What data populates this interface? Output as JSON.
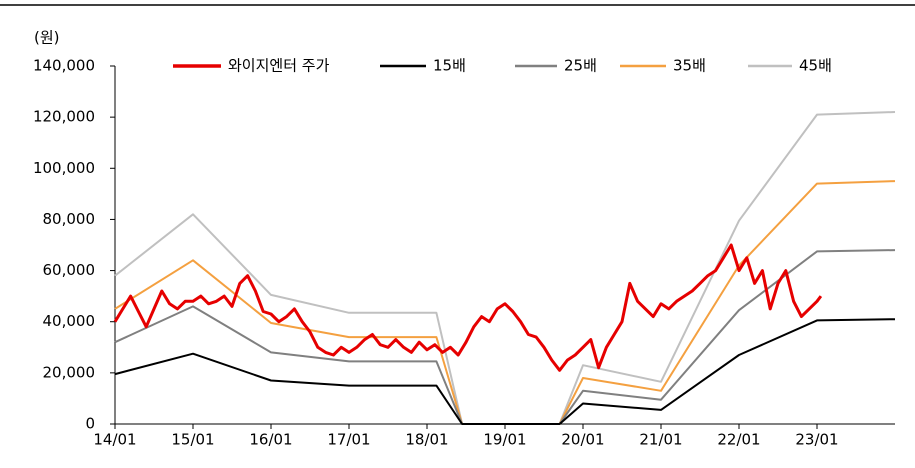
{
  "chart_data": {
    "type": "line",
    "y_axis_unit": "(원)",
    "xlim": [
      2014,
      2024
    ],
    "xticks": [
      {
        "value": 2014,
        "label": "14/01"
      },
      {
        "value": 2015,
        "label": "15/01"
      },
      {
        "value": 2016,
        "label": "16/01"
      },
      {
        "value": 2017,
        "label": "17/01"
      },
      {
        "value": 2018,
        "label": "18/01"
      },
      {
        "value": 2019,
        "label": "19/01"
      },
      {
        "value": 2020,
        "label": "20/01"
      },
      {
        "value": 2021,
        "label": "21/01"
      },
      {
        "value": 2022,
        "label": "22/01"
      },
      {
        "value": 2023,
        "label": "23/01"
      }
    ],
    "ylim": [
      0,
      140000
    ],
    "yticks": [
      0,
      {
        "value": 20000,
        "label": "20,000"
      },
      {
        "value": 40000,
        "label": "40,000"
      },
      {
        "value": 60000,
        "label": "60,000"
      },
      {
        "value": 80000,
        "label": "80,000"
      },
      {
        "value": 100000,
        "label": "100,000"
      },
      {
        "value": 120000,
        "label": "120,000"
      },
      {
        "value": 140000,
        "label": "140,000"
      }
    ],
    "legend": "top",
    "series": [
      {
        "name": "와이지엔터 주가",
        "color": "#e60000",
        "x": [
          2014,
          2014.1,
          2014.2,
          2014.3,
          2014.4,
          2014.5,
          2014.6,
          2014.7,
          2014.8,
          2014.9,
          2015,
          2015.1,
          2015.2,
          2015.3,
          2015.4,
          2015.5,
          2015.6,
          2015.7,
          2015.8,
          2015.9,
          2016,
          2016.1,
          2016.2,
          2016.3,
          2016.4,
          2016.5,
          2016.6,
          2016.7,
          2016.8,
          2016.9,
          2017,
          2017.1,
          2017.2,
          2017.3,
          2017.4,
          2017.5,
          2017.6,
          2017.7,
          2017.8,
          2017.9,
          2018,
          2018.1,
          2018.2,
          2018.3,
          2018.4,
          2018.5,
          2018.6,
          2018.7,
          2018.8,
          2018.9,
          2019,
          2019.1,
          2019.2,
          2019.3,
          2019.4,
          2019.5,
          2019.6,
          2019.7,
          2019.8,
          2019.9,
          2020,
          2020.1,
          2020.2,
          2020.3,
          2020.4,
          2020.5,
          2020.6,
          2020.7,
          2020.8,
          2020.9,
          2021,
          2021.1,
          2021.2,
          2021.3,
          2021.4,
          2021.5,
          2021.6,
          2021.7,
          2021.8,
          2021.9,
          2022,
          2022.1,
          2022.2,
          2022.3,
          2022.4,
          2022.5,
          2022.6,
          2022.7,
          2022.8,
          2022.9,
          2023,
          2023.05
        ],
        "values": [
          40000,
          45000,
          50000,
          44000,
          38000,
          45000,
          52000,
          47000,
          45000,
          48000,
          48000,
          50000,
          47000,
          48000,
          50000,
          46000,
          55000,
          58000,
          52000,
          44000,
          43000,
          40000,
          42000,
          45000,
          40000,
          36000,
          30000,
          28000,
          27000,
          30000,
          28000,
          30000,
          33000,
          35000,
          31000,
          30000,
          33000,
          30000,
          28000,
          32000,
          29000,
          31000,
          28000,
          30000,
          27000,
          32000,
          38000,
          42000,
          40000,
          45000,
          47000,
          44000,
          40000,
          35000,
          34000,
          30000,
          25000,
          21000,
          25000,
          27000,
          30000,
          33000,
          22000,
          30000,
          35000,
          40000,
          55000,
          48000,
          45000,
          42000,
          47000,
          45000,
          48000,
          50000,
          52000,
          55000,
          58000,
          60000,
          65000,
          70000,
          60000,
          65000,
          55000,
          60000,
          45000,
          55000,
          60000,
          48000,
          42000,
          45000,
          48000,
          50000
        ]
      },
      {
        "name": "15배",
        "color": "#000000",
        "x": [
          2014,
          2015,
          2016,
          2017,
          2018,
          2018.12,
          2018.45,
          2019.7,
          2020,
          2021,
          2022,
          2023,
          2024
        ],
        "values": [
          19500,
          27500,
          17000,
          15000,
          15000,
          15000,
          0,
          0,
          8000,
          5500,
          27000,
          40500,
          41000
        ]
      },
      {
        "name": "25배",
        "color": "#808080",
        "x": [
          2014,
          2015,
          2016,
          2017,
          2018,
          2018.12,
          2018.45,
          2019.7,
          2020,
          2021,
          2022,
          2023,
          2024
        ],
        "values": [
          32000,
          46000,
          28000,
          24500,
          24500,
          24500,
          0,
          0,
          13000,
          9500,
          44500,
          67500,
          68000
        ]
      },
      {
        "name": "35배",
        "color": "#f4a040",
        "x": [
          2014,
          2015,
          2016,
          2017,
          2018,
          2018.12,
          2018.45,
          2019.7,
          2020,
          2021,
          2022,
          2023,
          2024
        ],
        "values": [
          45000,
          64000,
          39500,
          34000,
          34000,
          34000,
          0,
          0,
          18000,
          13000,
          62000,
          94000,
          95000
        ]
      },
      {
        "name": "45배",
        "color": "#c0c0c0",
        "x": [
          2014,
          2015,
          2016,
          2017,
          2018,
          2018.12,
          2018.45,
          2019.7,
          2020,
          2021,
          2022,
          2023,
          2024
        ],
        "values": [
          58000,
          82000,
          50500,
          43500,
          43500,
          43500,
          0,
          0,
          23000,
          16500,
          79500,
          121000,
          122000
        ]
      }
    ]
  }
}
